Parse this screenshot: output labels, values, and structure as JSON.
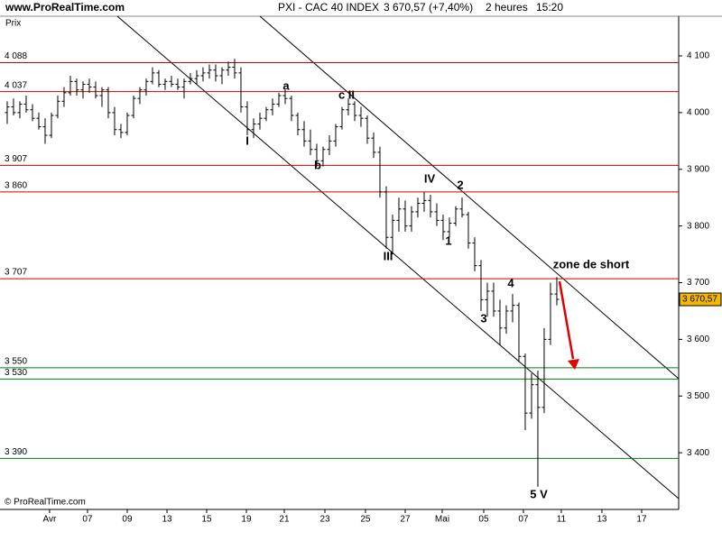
{
  "header": {
    "site": "www.ProRealTime.com",
    "instrument": "PXI - CAC 40 INDEX",
    "quote": "3 670,57 (+7,40%)",
    "period": "2 heures",
    "time": "15:20"
  },
  "chart_data": {
    "type": "ohlc",
    "y_label": "Prix",
    "copyright": "© ProRealTime.com",
    "last_price": {
      "value": 3670.57,
      "label": "3 670,57"
    },
    "open": [
      4000,
      4010,
      4000,
      4015,
      4005,
      3990,
      3975,
      3960,
      3995,
      4020,
      4035,
      4055,
      4040,
      4050,
      4045,
      4030,
      4040,
      4000,
      3970,
      3965,
      3995,
      4025,
      4040,
      4055,
      4070,
      4050,
      4055,
      4050,
      4045,
      4055,
      4060,
      4065,
      4070,
      4075,
      4065,
      4075,
      4080,
      4070,
      4010,
      3970,
      3980,
      3990,
      4005,
      4015,
      4030,
      4025,
      3995,
      3970,
      3950,
      3935,
      3915,
      3935,
      3950,
      3975,
      4005,
      4015,
      3995,
      3990,
      3955,
      3930,
      3860,
      3780,
      3810,
      3830,
      3800,
      3825,
      3840,
      3845,
      3825,
      3810,
      3790,
      3805,
      3830,
      3820,
      3770,
      3730,
      3670,
      3685,
      3650,
      3620,
      3650,
      3660,
      3570,
      3470,
      3520,
      3480,
      3600,
      3680
    ],
    "high": [
      4020,
      4025,
      4020,
      4030,
      4015,
      4000,
      3990,
      4000,
      4030,
      4045,
      4065,
      4060,
      4055,
      4060,
      4055,
      4045,
      4045,
      4010,
      3980,
      4000,
      4030,
      4045,
      4060,
      4080,
      4075,
      4060,
      4065,
      4060,
      4060,
      4070,
      4075,
      4080,
      4085,
      4085,
      4080,
      4090,
      4095,
      4080,
      4020,
      3990,
      4000,
      4010,
      4025,
      4035,
      4040,
      4030,
      4000,
      3985,
      3970,
      3945,
      3940,
      3960,
      3980,
      4010,
      4025,
      4020,
      4010,
      3995,
      3965,
      3940,
      3870,
      3820,
      3850,
      3845,
      3835,
      3850,
      3860,
      3855,
      3840,
      3820,
      3815,
      3835,
      3850,
      3825,
      3780,
      3740,
      3700,
      3700,
      3670,
      3660,
      3680,
      3665,
      3575,
      3540,
      3545,
      3620,
      3700,
      3710
    ],
    "low": [
      3980,
      3995,
      3990,
      4000,
      3985,
      3970,
      3945,
      3955,
      3990,
      4010,
      4030,
      4030,
      4025,
      4035,
      4025,
      4010,
      3990,
      3960,
      3955,
      3960,
      3990,
      4015,
      4030,
      4050,
      4045,
      4040,
      4045,
      4040,
      4025,
      4050,
      4050,
      4055,
      4060,
      4055,
      4050,
      4065,
      4060,
      4000,
      3960,
      3955,
      3970,
      3985,
      3995,
      4010,
      4015,
      3985,
      3960,
      3940,
      3925,
      3905,
      3905,
      3925,
      3940,
      3970,
      3995,
      3985,
      3975,
      3945,
      3920,
      3850,
      3760,
      3750,
      3790,
      3790,
      3790,
      3815,
      3825,
      3815,
      3800,
      3775,
      3780,
      3800,
      3815,
      3760,
      3720,
      3650,
      3640,
      3640,
      3590,
      3610,
      3630,
      3560,
      3440,
      3460,
      3340,
      3470,
      3590,
      3660
    ],
    "close": [
      4010,
      4000,
      4015,
      4005,
      3990,
      3975,
      3960,
      3995,
      4020,
      4035,
      4055,
      4040,
      4050,
      4045,
      4030,
      4040,
      4000,
      3970,
      3965,
      3995,
      4025,
      4040,
      4055,
      4070,
      4050,
      4055,
      4050,
      4045,
      4055,
      4060,
      4065,
      4070,
      4075,
      4065,
      4075,
      4080,
      4070,
      4010,
      3970,
      3980,
      3990,
      4005,
      4015,
      4030,
      4025,
      3995,
      3970,
      3950,
      3935,
      3915,
      3935,
      3950,
      3975,
      4005,
      4015,
      3995,
      3990,
      3955,
      3930,
      3860,
      3780,
      3810,
      3830,
      3800,
      3825,
      3840,
      3845,
      3825,
      3810,
      3790,
      3805,
      3830,
      3820,
      3770,
      3730,
      3670,
      3685,
      3650,
      3620,
      3650,
      3660,
      3570,
      3470,
      3520,
      3480,
      3600,
      3680,
      3670.57
    ],
    "color": "#000000",
    "xlim": [
      -1.14,
      106.29
    ],
    "xticks": [
      {
        "value": 6.71,
        "label": "Avr"
      },
      {
        "value": 12.71,
        "label": "07"
      },
      {
        "value": 19,
        "label": "09"
      },
      {
        "value": 25.29,
        "label": "13"
      },
      {
        "value": 31.57,
        "label": "15"
      },
      {
        "value": 37.86,
        "label": "19"
      },
      {
        "value": 43.86,
        "label": "21"
      },
      {
        "value": 50.29,
        "label": "23"
      },
      {
        "value": 56.71,
        "label": "25"
      },
      {
        "value": 63,
        "label": "27"
      },
      {
        "value": 68.86,
        "label": "Mai"
      },
      {
        "value": 75.43,
        "label": "05"
      },
      {
        "value": 81.71,
        "label": "07"
      },
      {
        "value": 87.71,
        "label": "11"
      },
      {
        "value": 94.14,
        "label": "13"
      },
      {
        "value": 100.43,
        "label": "17"
      }
    ],
    "ylim": [
      3300,
      4170
    ],
    "yticks": [
      {
        "value": 3400,
        "label": "3 400"
      },
      {
        "value": 3500,
        "label": "3 500"
      },
      {
        "value": 3600,
        "label": "3 600"
      },
      {
        "value": 3700,
        "label": "3 700"
      },
      {
        "value": 3800,
        "label": "3 800"
      },
      {
        "value": 3900,
        "label": "3 900"
      },
      {
        "value": 4000,
        "label": "4 000"
      },
      {
        "value": 4100,
        "label": "4 100"
      }
    ],
    "levels": [
      {
        "value": 4088,
        "label": "4 088",
        "color": "#d00000"
      },
      {
        "value": 4037,
        "label": "4 037",
        "color": "#d00000"
      },
      {
        "value": 3907,
        "label": "3 907",
        "color": "#d00000"
      },
      {
        "value": 3860,
        "label": "3 860",
        "color": "#d00000"
      },
      {
        "value": 3707,
        "label": "3 707",
        "color": "#d00000"
      },
      {
        "value": 3550,
        "label": "3 550",
        "color": "#008000"
      },
      {
        "value": 3530,
        "label": "3 530",
        "color": "#008000"
      },
      {
        "value": 3390,
        "label": "3 390",
        "color": "#008000"
      }
    ],
    "annotations": [
      "a",
      "b",
      "c II",
      "I",
      "III",
      "IV",
      "1",
      "2",
      "3",
      "4",
      "5 V",
      "zone de short"
    ]
  }
}
